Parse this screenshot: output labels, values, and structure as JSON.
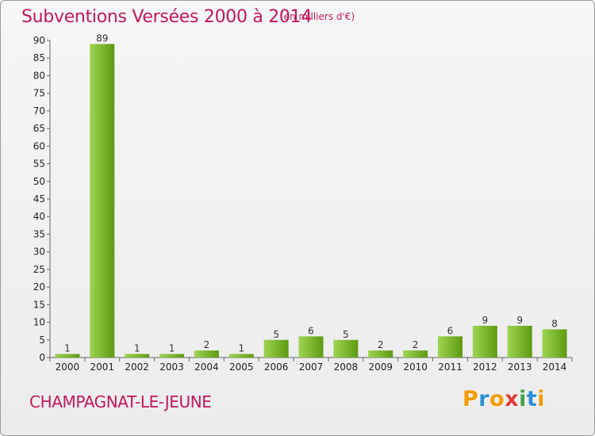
{
  "title": "Subventions Versées 2000 à 2014",
  "subtitle": "(en milliers d'€)",
  "city": "CHAMPAGNAT-LE-JEUNE",
  "logo": {
    "letters": [
      "P",
      "r",
      "o",
      "x",
      "i",
      "t",
      "i"
    ],
    "colors": [
      "#f59b00",
      "#2b8fd6",
      "#f59b00",
      "#e53935",
      "#43a047",
      "#2b8fd6",
      "#f59b00"
    ]
  },
  "colors": {
    "bar_light": "#9ed451",
    "bar_dark": "#5e9a12",
    "accent": "#c2185b"
  },
  "chart_data": {
    "type": "bar",
    "categories": [
      "2000",
      "2001",
      "2002",
      "2003",
      "2004",
      "2005",
      "2006",
      "2007",
      "2008",
      "2009",
      "2010",
      "2011",
      "2012",
      "2013",
      "2014"
    ],
    "values": [
      1,
      89,
      1,
      1,
      2,
      1,
      5,
      6,
      5,
      2,
      2,
      6,
      9,
      9,
      8
    ],
    "value_labels": [
      "1",
      "89",
      "1",
      "1",
      "2",
      "1",
      "5",
      "6",
      "5",
      "2",
      "2",
      "6",
      "9",
      "9",
      "8"
    ],
    "ylim": [
      0,
      90
    ],
    "yticks": [
      "0",
      "5",
      "10",
      "15",
      "20",
      "25",
      "30",
      "35",
      "40",
      "45",
      "50",
      "55",
      "60",
      "65",
      "70",
      "75",
      "80",
      "85",
      "90"
    ],
    "grid": false
  }
}
